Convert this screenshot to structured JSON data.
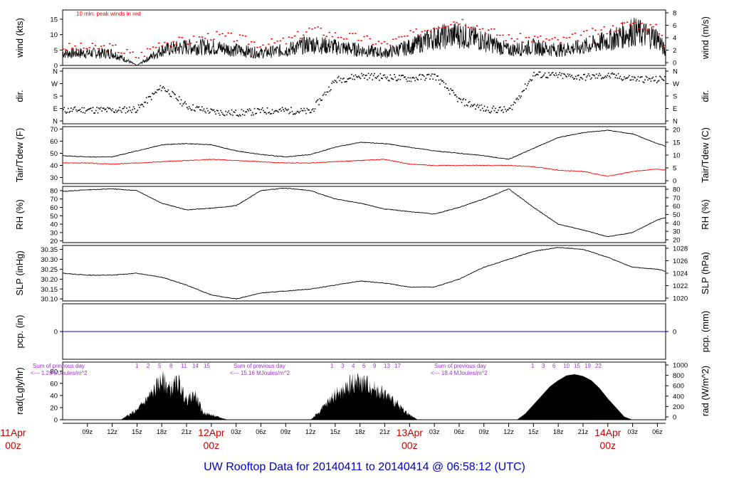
{
  "title": "UW Rooftop Data for 20140411  to  20140414 @ 06:58:12  (UTC)",
  "colors": {
    "title": "#0000cc",
    "primary_line": "#000000",
    "peak_wind": "#ff0000",
    "dewpoint": "#ff0000",
    "precip": "#0000ff",
    "date_label": "#cc0000",
    "radiation_annotation": "#9933cc"
  },
  "chart_data": {
    "type": "line",
    "x_ticks_hours": [
      "09z",
      "12z",
      "15z",
      "18z",
      "21z",
      "03z",
      "06z",
      "09z",
      "12z",
      "15z",
      "18z",
      "21z",
      "03z",
      "06z",
      "09z",
      "12z",
      "15z",
      "18z",
      "21z",
      "03z",
      "06z"
    ],
    "date_labels": [
      {
        "date": "11Apr",
        "time": "00z"
      },
      {
        "date": "12Apr",
        "time": "00z"
      },
      {
        "date": "13Apr",
        "time": "00z"
      },
      {
        "date": "14Apr",
        "time": "00z"
      }
    ],
    "panels": [
      {
        "id": "wind",
        "ylabel_left": "wind (kts)",
        "ylabel_right": "wind (m/s)",
        "yticks_left": [
          "0",
          "5",
          "10",
          "15"
        ],
        "yticks_right": [
          "0",
          "2",
          "4",
          "6",
          "8"
        ],
        "ylim": [
          0,
          18
        ],
        "annotation": "10 min. peak winds in red",
        "series": [
          {
            "x": [
              6,
              12,
              15,
              18,
              21,
              24,
              27,
              30,
              33,
              36,
              39,
              42,
              45,
              48,
              51,
              54,
              57,
              60,
              63,
              66,
              69,
              72,
              75,
              78,
              79
            ],
            "y": [
              4,
              4,
              0,
              5,
              6,
              6,
              5,
              4,
              5,
              7,
              6,
              5,
              4,
              6,
              9,
              10,
              8,
              5,
              6,
              5,
              6,
              8,
              11,
              9,
              4
            ]
          },
          {
            "x": [
              6,
              12,
              15,
              18,
              21,
              24,
              27,
              30,
              33,
              36,
              39,
              42,
              45,
              48,
              51,
              54,
              57,
              60,
              63,
              66,
              69,
              72,
              75,
              78,
              79
            ],
            "y": [
              6,
              6,
              3,
              8,
              8,
              10,
              9,
              7,
              8,
              12,
              10,
              9,
              7,
              10,
              13,
              15,
              12,
              9,
              9,
              8,
              10,
              12,
              14,
              12,
              7
            ]
          }
        ]
      },
      {
        "id": "dir",
        "ylabel_left": "dir.",
        "ylabel_right": "dir.",
        "yticks_left": [
          "N",
          "E",
          "S",
          "W",
          "N"
        ],
        "yticks_right": [
          "N",
          "E",
          "S",
          "W",
          "N"
        ],
        "ylim": [
          0,
          360
        ],
        "series": [
          {
            "x": [
              6,
              9,
              12,
              15,
              18,
              21,
              24,
              27,
              30,
              33,
              36,
              39,
              42,
              45,
              48,
              51,
              54,
              57,
              60,
              63,
              66,
              69,
              72,
              75,
              78,
              79
            ],
            "y": [
              80,
              85,
              80,
              90,
              250,
              110,
              70,
              60,
              75,
              80,
              70,
              300,
              330,
              320,
              310,
              330,
              150,
              90,
              80,
              340,
              330,
              320,
              330,
              310,
              300,
              320
            ]
          }
        ]
      },
      {
        "id": "temp",
        "ylabel_left": "Tair/Tdew (F)",
        "ylabel_right": "Tair/Tdew (C)",
        "yticks_left": [
          "30",
          "40",
          "50",
          "60",
          "70"
        ],
        "yticks_right": [
          "0",
          "5",
          "10",
          "15",
          "20"
        ],
        "ylim": [
          25,
          72
        ],
        "series": [
          {
            "x": [
              6,
              9,
              12,
              15,
              18,
              21,
              24,
              27,
              30,
              33,
              36,
              39,
              42,
              45,
              48,
              51,
              54,
              57,
              60,
              63,
              66,
              69,
              72,
              75,
              78,
              79
            ],
            "y": [
              48,
              47,
              47,
              52,
              57,
              58,
              57,
              52,
              49,
              47,
              49,
              55,
              59,
              58,
              55,
              52,
              50,
              48,
              45,
              54,
              63,
              67,
              69,
              66,
              58,
              56
            ]
          },
          {
            "x": [
              6,
              9,
              12,
              15,
              18,
              21,
              24,
              27,
              30,
              33,
              36,
              39,
              42,
              45,
              48,
              51,
              54,
              57,
              60,
              63,
              66,
              69,
              72,
              75,
              78,
              79
            ],
            "y": [
              42,
              42,
              41,
              42,
              43,
              44,
              45,
              44,
              43,
              42,
              42,
              43,
              44,
              45,
              41,
              40,
              40,
              40,
              40,
              39,
              36,
              35,
              31,
              35,
              37,
              36
            ]
          }
        ]
      },
      {
        "id": "rh",
        "ylabel_left": "RH (%)",
        "ylabel_right": "RH (%)",
        "yticks_left": [
          "20",
          "30",
          "40",
          "50",
          "60",
          "70",
          "80"
        ],
        "yticks_right": [
          "20",
          "30",
          "40",
          "50",
          "60",
          "70",
          "80"
        ],
        "ylim": [
          18,
          85
        ],
        "series": [
          {
            "x": [
              6,
              9,
              12,
              15,
              18,
              21,
              24,
              27,
              30,
              33,
              36,
              39,
              42,
              45,
              48,
              51,
              54,
              57,
              60,
              63,
              66,
              69,
              72,
              75,
              78,
              79
            ],
            "y": [
              79,
              81,
              82,
              80,
              65,
              57,
              59,
              62,
              80,
              83,
              80,
              70,
              65,
              58,
              55,
              52,
              60,
              70,
              82,
              60,
              40,
              33,
              25,
              30,
              45,
              48
            ]
          }
        ]
      },
      {
        "id": "slp",
        "ylabel_left": "SLP (inHg)",
        "ylabel_right": "SLP (hPa)",
        "yticks_left": [
          "30.10",
          "30.15",
          "30.20",
          "30.25",
          "30.30",
          "30.35"
        ],
        "yticks_right": [
          "1020",
          "1022",
          "1024",
          "1026",
          "1028"
        ],
        "ylim": [
          30.09,
          30.37
        ],
        "series": [
          {
            "x": [
              6,
              9,
              12,
              15,
              18,
              21,
              24,
              27,
              30,
              33,
              36,
              39,
              42,
              45,
              48,
              51,
              54,
              57,
              60,
              63,
              66,
              69,
              72,
              75,
              78,
              79
            ],
            "y": [
              30.23,
              30.22,
              30.22,
              30.23,
              30.21,
              30.17,
              30.12,
              30.1,
              30.13,
              30.14,
              30.15,
              30.17,
              30.19,
              30.18,
              30.16,
              30.16,
              30.2,
              30.26,
              30.3,
              30.34,
              30.36,
              30.35,
              30.31,
              30.26,
              30.25,
              30.24
            ]
          }
        ]
      },
      {
        "id": "pcp",
        "ylabel_left": "pcp. (in)",
        "ylabel_right": "pcp. (mm)",
        "yticks_left": [
          "0"
        ],
        "yticks_right": [
          "0"
        ],
        "ylim": [
          -1,
          1
        ],
        "series": [
          {
            "x": [
              6,
              79
            ],
            "y": [
              0,
              0
            ]
          }
        ]
      },
      {
        "id": "rad",
        "ylabel_left": "rad(Lgly/hr)",
        "ylabel_right": "rad (W/m^2)",
        "yticks_left": [
          "0",
          "20",
          "40",
          "60",
          "80"
        ],
        "yticks_right": [
          "0",
          "200",
          "400",
          "600",
          "800",
          "1000"
        ],
        "ylim": [
          0,
          95
        ],
        "hour_labels": [
          [
            "1",
            "2",
            "5",
            "8",
            "11",
            "14",
            "15"
          ],
          [
            "1",
            "3",
            "4",
            "6",
            "9",
            "13",
            "17"
          ],
          [
            "1",
            "3",
            "6",
            "10",
            "15",
            "19",
            "22"
          ]
        ],
        "sums": [
          {
            "heading": "Sum of previous day",
            "value": "<--- 1.29 MJoules/m^2"
          },
          {
            "heading": "Sum of previous day",
            "value": "<--- 15.16 MJoules/m^2"
          },
          {
            "heading": "Sum of previous day",
            "value": "<--- 18.4 MJoules/m^2"
          }
        ],
        "series": [
          {
            "x": [
              6,
              13,
              14,
              15,
              16,
              17,
              18,
              19,
              20,
              21,
              22,
              23,
              24,
              25,
              26,
              36,
              37,
              38,
              39,
              40,
              41,
              42,
              43,
              44,
              45,
              46,
              47,
              48,
              49,
              50,
              51,
              61,
              62,
              63,
              64,
              65,
              66,
              67,
              68,
              69,
              70,
              71,
              72,
              73,
              74,
              75
            ],
            "y": [
              0,
              0,
              10,
              20,
              40,
              60,
              85,
              65,
              80,
              40,
              55,
              15,
              10,
              5,
              0,
              0,
              15,
              35,
              55,
              60,
              80,
              80,
              75,
              65,
              55,
              40,
              25,
              10,
              0,
              0,
              0,
              0,
              10,
              25,
              40,
              55,
              65,
              73,
              75,
              72,
              65,
              52,
              35,
              20,
              5,
              0
            ]
          }
        ]
      }
    ]
  }
}
